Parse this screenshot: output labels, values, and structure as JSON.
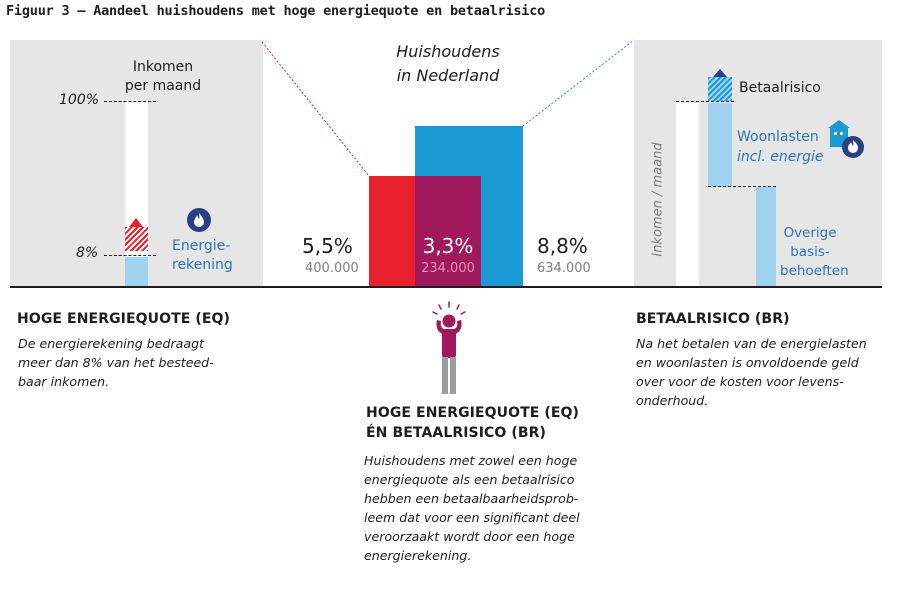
{
  "title": "Figuur 3 – Aandeel huishoudens met hoge energiequote en betaalrisico",
  "left_panel": {
    "income_label_line1": "Inkomen",
    "income_label_line2": "per maand",
    "pct_100": "100%",
    "pct_8": "8%",
    "energy_label_line1": "Energie-",
    "energy_label_line2": "rekening"
  },
  "center": {
    "nl_label_line1": "Huishoudens",
    "nl_label_line2": "in Nederland",
    "eq_pct": "5,5%",
    "eq_count": "400.000",
    "both_pct": "3,3%",
    "both_count": "234.000",
    "br_pct": "8,8%",
    "br_count": "634.000"
  },
  "right_panel": {
    "axis_label": "Inkomen / maand",
    "risk_label": "Betaalrisico",
    "housing_label_line1": "Woonlasten",
    "housing_label_line2": "incl. energie",
    "other_label_line1": "Overige",
    "other_label_line2": "basis-",
    "other_label_line3": "behoeften"
  },
  "sections": {
    "eq_heading": "HOGE ENERGIEQUOTE (EQ)",
    "eq_desc": [
      "De energierekening bedraagt",
      "meer dan 8% van het besteed-",
      "baar inkomen."
    ],
    "both_heading_line1": "HOGE ENERGIEQUOTE (EQ)",
    "both_heading_line2": "ÉN BETAALRISICO (BR)",
    "both_desc": [
      "Huishoudens met zowel een hoge",
      "energiequote  als een betaalrisico",
      "hebben een betaalbaarheidsprob-",
      "leem dat voor een significant deel",
      "veroorzaakt wordt door een hoge",
      "energierekening."
    ],
    "br_heading": "BETAALRISICO (BR)",
    "br_desc": [
      "Na het betalen van de energielasten",
      "en woonlasten is onvoldoende geld",
      "over voor de kosten voor levens-",
      "onderhoud."
    ]
  },
  "colors": {
    "red": "#e8202a",
    "overlap": "#a0195c",
    "blue": "#1b9ad6",
    "light_blue": "#9fd3f0",
    "panel_grey": "#e6e6e6",
    "label_blue": "#2f74b7",
    "person": "#a0195c"
  },
  "icons": [
    "flame-icon",
    "house-icon",
    "stressed-person-icon"
  ]
}
